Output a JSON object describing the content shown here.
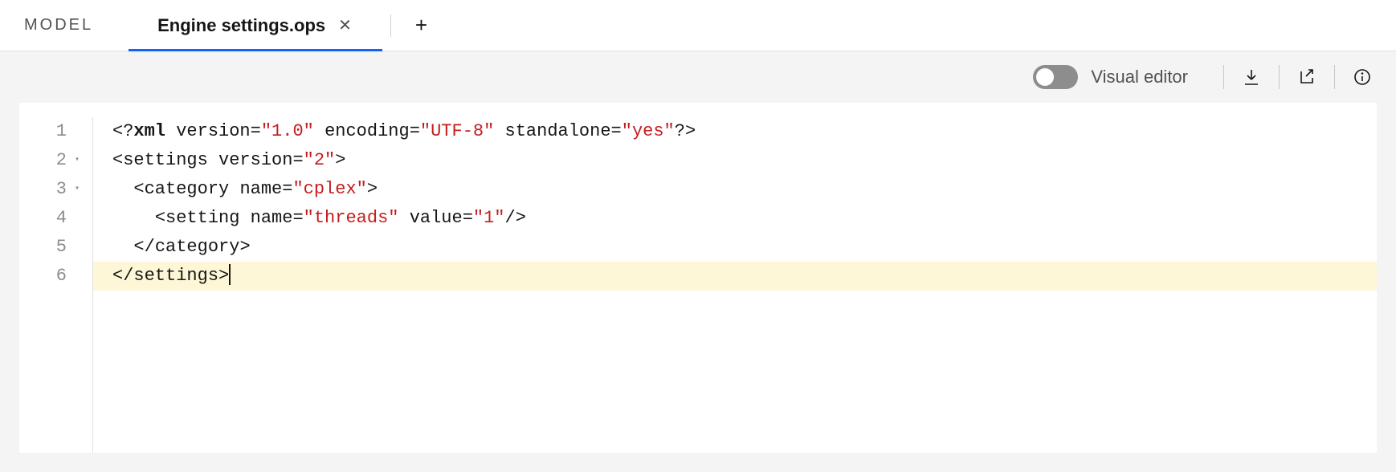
{
  "tabs": {
    "model_label": "MODEL",
    "active_label": "Engine settings.ops"
  },
  "toolbar": {
    "visual_editor_label": "Visual editor",
    "visual_editor_on": false
  },
  "editor": {
    "highlighted_line": 6,
    "fold_markers": {
      "2": true,
      "3": true
    },
    "cursor": {
      "line": 6,
      "after_token": 2
    },
    "colors": {
      "punctuation": "#161616",
      "tag": "#161616",
      "attr": "#161616",
      "string": "#c41d1d",
      "highlight_bg": "#fdf7d7",
      "gutter_text": "#8d8d8d",
      "gutter_border": "#e0e0e0",
      "toolbar_bg": "#f4f4f4",
      "active_tab_underline": "#0f62fe"
    },
    "lines": [
      {
        "n": 1,
        "indent": 0,
        "tokens": [
          {
            "t": "punct",
            "v": "<?"
          },
          {
            "t": "tagbold",
            "v": "xml"
          },
          {
            "t": "punct",
            "v": " "
          },
          {
            "t": "attr",
            "v": "version"
          },
          {
            "t": "eq",
            "v": "="
          },
          {
            "t": "str",
            "v": "\"1.0\""
          },
          {
            "t": "punct",
            "v": " "
          },
          {
            "t": "attr",
            "v": "encoding"
          },
          {
            "t": "eq",
            "v": "="
          },
          {
            "t": "str",
            "v": "\"UTF-8\""
          },
          {
            "t": "punct",
            "v": " "
          },
          {
            "t": "attr",
            "v": "standalone"
          },
          {
            "t": "eq",
            "v": "="
          },
          {
            "t": "str",
            "v": "\"yes\""
          },
          {
            "t": "punct",
            "v": "?>"
          }
        ]
      },
      {
        "n": 2,
        "indent": 0,
        "tokens": [
          {
            "t": "punct",
            "v": "<"
          },
          {
            "t": "tag",
            "v": "settings"
          },
          {
            "t": "punct",
            "v": " "
          },
          {
            "t": "attr",
            "v": "version"
          },
          {
            "t": "eq",
            "v": "="
          },
          {
            "t": "str",
            "v": "\"2\""
          },
          {
            "t": "punct",
            "v": ">"
          }
        ]
      },
      {
        "n": 3,
        "indent": 1,
        "tokens": [
          {
            "t": "punct",
            "v": "<"
          },
          {
            "t": "tag",
            "v": "category"
          },
          {
            "t": "punct",
            "v": " "
          },
          {
            "t": "attr",
            "v": "name"
          },
          {
            "t": "eq",
            "v": "="
          },
          {
            "t": "str",
            "v": "\"cplex\""
          },
          {
            "t": "punct",
            "v": ">"
          }
        ]
      },
      {
        "n": 4,
        "indent": 2,
        "tokens": [
          {
            "t": "punct",
            "v": "<"
          },
          {
            "t": "tag",
            "v": "setting"
          },
          {
            "t": "punct",
            "v": " "
          },
          {
            "t": "attr",
            "v": "name"
          },
          {
            "t": "eq",
            "v": "="
          },
          {
            "t": "str",
            "v": "\"threads\""
          },
          {
            "t": "punct",
            "v": " "
          },
          {
            "t": "attr",
            "v": "value"
          },
          {
            "t": "eq",
            "v": "="
          },
          {
            "t": "str",
            "v": "\"1\""
          },
          {
            "t": "punct",
            "v": "/>"
          }
        ]
      },
      {
        "n": 5,
        "indent": 1,
        "tokens": [
          {
            "t": "punct",
            "v": "</"
          },
          {
            "t": "tag",
            "v": "category"
          },
          {
            "t": "punct",
            "v": ">"
          }
        ]
      },
      {
        "n": 6,
        "indent": 0,
        "tokens": [
          {
            "t": "punct",
            "v": "</"
          },
          {
            "t": "tag",
            "v": "settings"
          },
          {
            "t": "punct",
            "v": ">"
          }
        ]
      }
    ]
  }
}
